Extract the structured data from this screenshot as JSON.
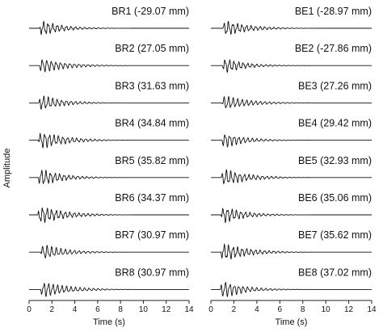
{
  "chart_data": {
    "type": "line",
    "ylabel": "Amplitude",
    "grid": false,
    "panels": [
      {
        "xlabel": "Time (s)",
        "xlim": [
          0,
          14
        ],
        "xticks": [
          0,
          2,
          4,
          6,
          8,
          10,
          12,
          14
        ],
        "traces": [
          {
            "label": "BR1 (-29.07 mm)",
            "displacement_mm": -29.07
          },
          {
            "label": "BR2 (27.05 mm)",
            "displacement_mm": 27.05
          },
          {
            "label": "BR3 (31.63 mm)",
            "displacement_mm": 31.63
          },
          {
            "label": "BR4 (34.84 mm)",
            "displacement_mm": 34.84
          },
          {
            "label": "BR5 (35.82 mm)",
            "displacement_mm": 35.82
          },
          {
            "label": "BR6 (34.37 mm)",
            "displacement_mm": 34.37
          },
          {
            "label": "BR7 (30.97 mm)",
            "displacement_mm": 30.97
          },
          {
            "label": "BR8 (30.97 mm)",
            "displacement_mm": 30.97
          }
        ]
      },
      {
        "xlabel": "Time (s)",
        "xlim": [
          0,
          14
        ],
        "xticks": [
          0,
          2,
          4,
          6,
          8,
          10,
          12,
          14
        ],
        "traces": [
          {
            "label": "BE1 (-28.97 mm)",
            "displacement_mm": -28.97
          },
          {
            "label": "BE2 (-27.86 mm)",
            "displacement_mm": -27.86
          },
          {
            "label": "BE3 (27.26 mm)",
            "displacement_mm": 27.26
          },
          {
            "label": "BE4 (29.42 mm)",
            "displacement_mm": 29.42
          },
          {
            "label": "BE5 (32.93 mm)",
            "displacement_mm": 32.93
          },
          {
            "label": "BE6 (35.06 mm)",
            "displacement_mm": 35.06
          },
          {
            "label": "BE7 (35.62 mm)",
            "displacement_mm": 35.62
          },
          {
            "label": "BE8 (37.02 mm)",
            "displacement_mm": 37.02
          }
        ]
      }
    ]
  }
}
